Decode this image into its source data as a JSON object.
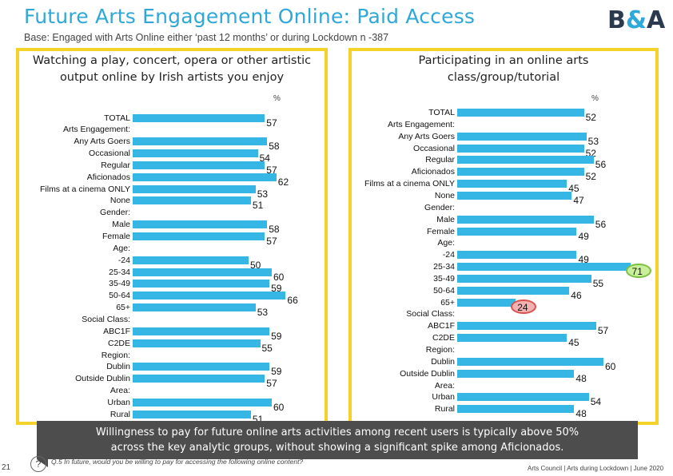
{
  "header": {
    "title": "Future Arts Engagement Online: Paid Access",
    "subtitle": "Base: Engaged with Arts Online either ‘past 12 months’ or during Lockdown n -387",
    "logo": "B&A"
  },
  "colors": {
    "bar": "#35b6e5",
    "frame": "#f3d22a",
    "title": "#2ea8d8",
    "banner": "#4d4d4d",
    "highlight_high": "#c9ef9a",
    "highlight_low": "#f5b0b0"
  },
  "chart_data": [
    {
      "type": "bar",
      "orientation": "horizontal",
      "title": "Watching a play, concert, opera or other artistic output online by Irish artists you enjoy",
      "unit_label": "%",
      "categories": [
        "TOTAL",
        "Arts Engagement:",
        "Any Arts Goers",
        "Occasional",
        "Regular",
        "Aficionados",
        "Films at a cinema ONLY",
        "None",
        "Gender:",
        "Male",
        "Female",
        "Age:",
        "-24",
        "25-34",
        "35-49",
        "50-64",
        "65+",
        "Social Class:",
        "ABC1F",
        "C2DE",
        "Region:",
        "Dublin",
        "Outside Dublin",
        "Area:",
        "Urban",
        "Rural"
      ],
      "values": [
        57,
        null,
        58,
        54,
        57,
        62,
        53,
        51,
        null,
        58,
        57,
        null,
        50,
        60,
        59,
        66,
        53,
        null,
        59,
        55,
        null,
        59,
        57,
        null,
        60,
        51
      ],
      "value_labels": [
        "57",
        "",
        "58",
        "54",
        "57",
        "62",
        "53",
        "51",
        "",
        "58",
        "57",
        "",
        "50",
        "60",
        "59",
        "66",
        "53",
        "",
        "59",
        "55",
        "",
        "59",
        "57",
        "",
        "60",
        "51"
      ],
      "highlights": []
    },
    {
      "type": "bar",
      "orientation": "horizontal",
      "title": "Participating in an online arts class/group/tutorial",
      "unit_label": "%",
      "categories": [
        "TOTAL",
        "Arts Engagement:",
        "Any Arts Goers",
        "Occasional",
        "Regular",
        "Aficionados",
        "Films at a cinema ONLY",
        "None",
        "Gender:",
        "Male",
        "Female",
        "Age:",
        "-24",
        "25-34",
        "35-49",
        "50-64",
        "65+",
        "Social Class:",
        "ABC1F",
        "C2DE",
        "Region:",
        "Dublin",
        "Outside Dublin",
        "Area:",
        "Urban",
        "Rural"
      ],
      "values": [
        52,
        null,
        53,
        52,
        56,
        52,
        45,
        47,
        null,
        56,
        49,
        null,
        49,
        71,
        55,
        46,
        24,
        null,
        57,
        45,
        null,
        60,
        48,
        null,
        54,
        48
      ],
      "value_labels": [
        "52",
        "",
        "53",
        "52",
        "56",
        "52",
        "45",
        "47",
        "",
        "56",
        "49",
        "",
        "49",
        "71",
        "55",
        "46",
        "24",
        "",
        "57",
        "45",
        "",
        "60",
        "48",
        "",
        "54",
        "48"
      ],
      "highlights": [
        {
          "category": "25-34",
          "direction": "high"
        },
        {
          "category": "65+",
          "direction": "low"
        }
      ]
    }
  ],
  "banner": {
    "line1": "Willingness to pay for future online arts activities among recent users is typically above 50%",
    "line2": "across the key analytic groups, without showing a significant spike among Aficionados."
  },
  "footer": {
    "page_number": "21",
    "question_icon": "?",
    "question": "Q.5 In future, would you be willing to pay for accessing the following online content?",
    "source": "Arts Council | Arts during Lockdown | June 2020"
  }
}
